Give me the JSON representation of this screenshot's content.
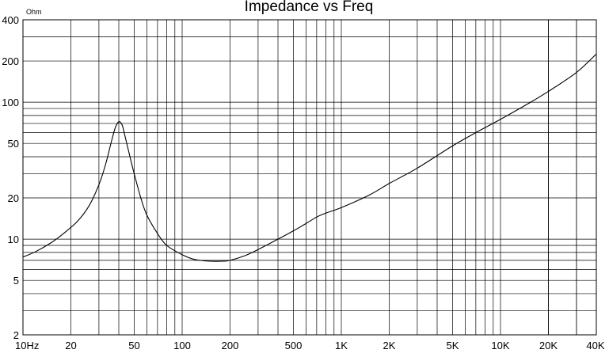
{
  "chart_data": {
    "type": "line",
    "title": "Impedance vs Freq",
    "ylabel": "Ohm",
    "xlabel": "",
    "x_scale": "log",
    "y_scale": "log",
    "xlim": [
      10,
      40000
    ],
    "ylim": [
      2,
      400
    ],
    "grid": true,
    "x_ticks": [
      {
        "value": 10,
        "label": "10Hz"
      },
      {
        "value": 20,
        "label": "20"
      },
      {
        "value": 50,
        "label": "50"
      },
      {
        "value": 100,
        "label": "100"
      },
      {
        "value": 200,
        "label": "200"
      },
      {
        "value": 500,
        "label": "500"
      },
      {
        "value": 1000,
        "label": "1K"
      },
      {
        "value": 2000,
        "label": "2K"
      },
      {
        "value": 5000,
        "label": "5K"
      },
      {
        "value": 10000,
        "label": "10K"
      },
      {
        "value": 20000,
        "label": "20K"
      },
      {
        "value": 40000,
        "label": "40K"
      }
    ],
    "y_ticks": [
      {
        "value": 2,
        "label": "2"
      },
      {
        "value": 5,
        "label": "5"
      },
      {
        "value": 10,
        "label": "10"
      },
      {
        "value": 20,
        "label": "20"
      },
      {
        "value": 50,
        "label": "50"
      },
      {
        "value": 100,
        "label": "100"
      },
      {
        "value": 200,
        "label": "200"
      },
      {
        "value": 400,
        "label": "400"
      }
    ],
    "series": [
      {
        "x": [
          10,
          12,
          15,
          18,
          22,
          26,
          30,
          33,
          36,
          38,
          40,
          42,
          44,
          47,
          50,
          55,
          60,
          70,
          80,
          100,
          120,
          150,
          180,
          200,
          250,
          300,
          400,
          500,
          600,
          700,
          800,
          1000,
          1500,
          2000,
          3000,
          5000,
          7000,
          10000,
          15000,
          20000,
          30000,
          40000
        ],
        "y": [
          7.4,
          8.1,
          9.4,
          11.0,
          13.5,
          17.5,
          25.0,
          35.0,
          52.0,
          65.0,
          72.0,
          68.0,
          55.0,
          40.0,
          30.0,
          20.0,
          15.0,
          11.0,
          9.0,
          7.7,
          7.1,
          6.9,
          6.9,
          7.0,
          7.6,
          8.4,
          10.0,
          11.5,
          13.0,
          14.5,
          15.5,
          17.0,
          21.0,
          25.5,
          33.0,
          48.0,
          60.0,
          75.0,
          98.0,
          120.0,
          165.0,
          225.0
        ]
      }
    ]
  }
}
